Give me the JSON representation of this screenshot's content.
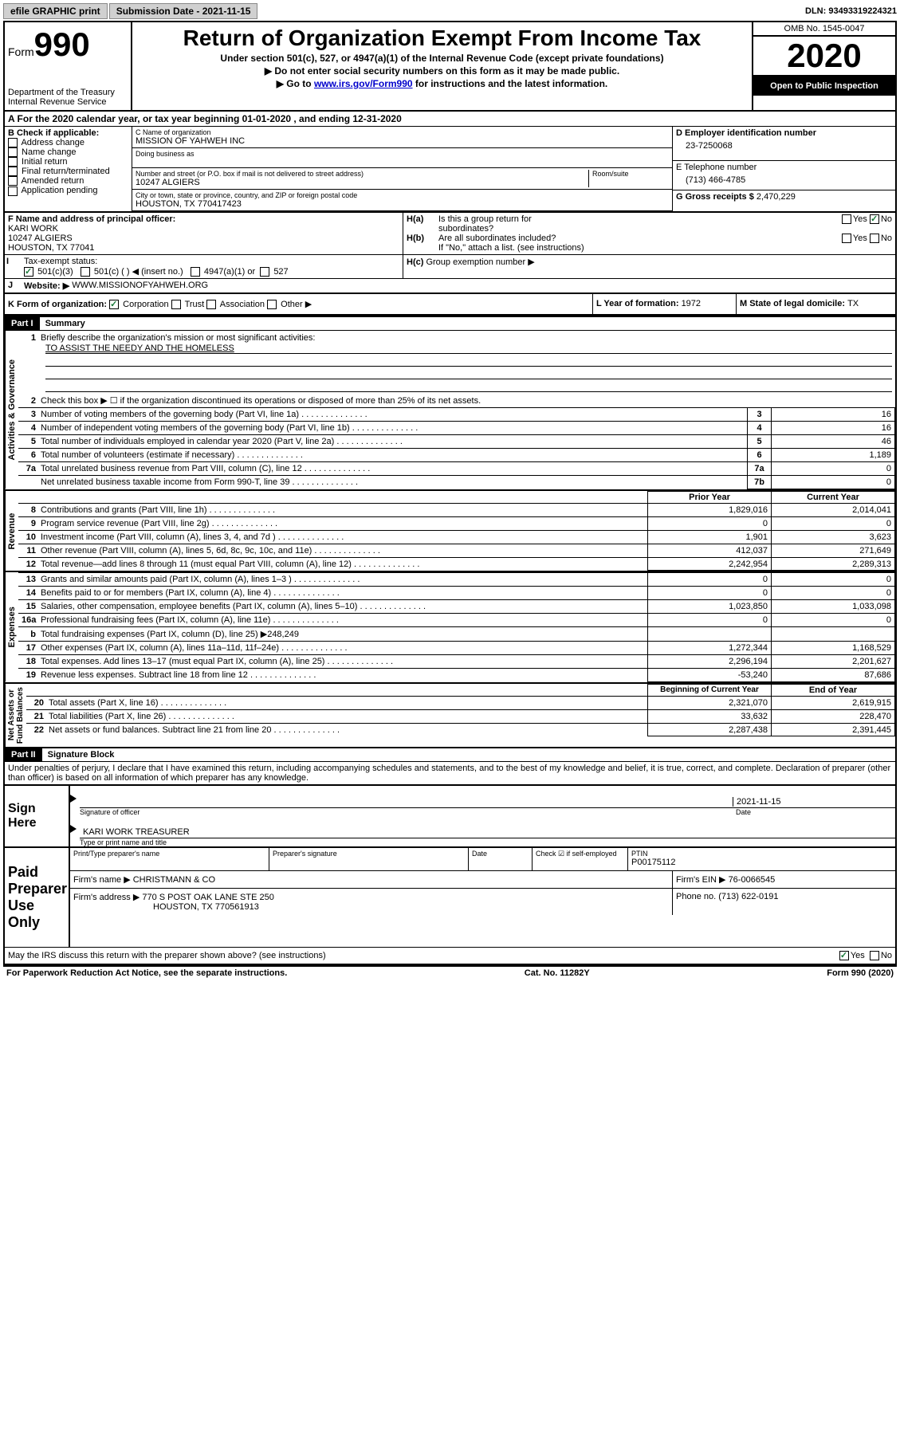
{
  "topbar": {
    "efile": "efile GRAPHIC print",
    "submission_label": "Submission Date - ",
    "submission_date": "2021-11-15",
    "dln_label": "DLN: ",
    "dln": "93493319224321"
  },
  "header": {
    "form_label": "Form",
    "form_num": "990",
    "dept": "Department of the Treasury\nInternal Revenue Service",
    "title": "Return of Organization Exempt From Income Tax",
    "subtitle": "Under section 501(c), 527, or 4947(a)(1) of the Internal Revenue Code (except private foundations)",
    "note1": "▶ Do not enter social security numbers on this form as it may be made public.",
    "note2_pre": "▶ Go to ",
    "note2_link": "www.irs.gov/Form990",
    "note2_post": " for instructions and the latest information.",
    "omb": "OMB No. 1545-0047",
    "year": "2020",
    "inspection": "Open to Public Inspection"
  },
  "section_a": "A For the 2020 calendar year, or tax year beginning 01-01-2020    , and ending 12-31-2020",
  "col_b": {
    "label": "B Check if applicable:",
    "items": [
      "Address change",
      "Name change",
      "Initial return",
      "Final return/terminated",
      "Amended return",
      "Application pending"
    ]
  },
  "col_c": {
    "name_label": "C Name of organization",
    "name": "MISSION OF YAHWEH INC",
    "dba_label": "Doing business as",
    "street_label": "Number and street (or P.O. box if mail is not delivered to street address)",
    "room_label": "Room/suite",
    "street": "10247 ALGIERS",
    "city_label": "City or town, state or province, country, and ZIP or foreign postal code",
    "city": "HOUSTON, TX  770417423"
  },
  "col_d": {
    "label": "D Employer identification number",
    "ein": "23-7250068"
  },
  "col_e": {
    "label": "E Telephone number",
    "phone": "(713) 466-4785"
  },
  "col_g": {
    "label": "G Gross receipts $ ",
    "amount": "2,470,229"
  },
  "col_f": {
    "label": "F  Name and address of principal officer:",
    "name": "KARI WORK",
    "street": "10247 ALGIERS",
    "city": "HOUSTON, TX  77041"
  },
  "col_h": {
    "a_label": "Is this a group return for",
    "a_label2": "subordinates?",
    "b_label": "Are all subordinates included?",
    "b_note": "If \"No,\" attach a list. (see instructions)",
    "c_label": "Group exemption number ▶"
  },
  "tax_exempt": {
    "label": "Tax-exempt status:",
    "opt1": "501(c)(3)",
    "opt2": "501(c) (   ) ◀ (insert no.)",
    "opt3": "4947(a)(1) or",
    "opt4": "527"
  },
  "website": {
    "label": "Website: ▶",
    "url": "WWW.MISSIONOFYAHWEH.ORG"
  },
  "col_k": {
    "label": "K Form of organization:",
    "opts": [
      "Corporation",
      "Trust",
      "Association",
      "Other ▶"
    ]
  },
  "col_l": {
    "label": "L Year of formation: ",
    "val": "1972"
  },
  "col_m": {
    "label": "M State of legal domicile: ",
    "val": "TX"
  },
  "part1": {
    "header": "Part I",
    "title": "Summary",
    "activities_label": "Activities & Governance",
    "revenue_label": "Revenue",
    "expenses_label": "Expenses",
    "netassets_label": "Net Assets or\nFund Balances",
    "line1_label": "Briefly describe the organization's mission or most significant activities:",
    "line1_text": "TO ASSIST THE NEEDY AND THE HOMELESS",
    "line2": "Check this box ▶ ☐  if the organization discontinued its operations or disposed of more than 25% of its net assets.",
    "lines_gov": [
      {
        "n": "3",
        "t": "Number of voting members of the governing body (Part VI, line 1a)",
        "b": "3",
        "v": "16"
      },
      {
        "n": "4",
        "t": "Number of independent voting members of the governing body (Part VI, line 1b)",
        "b": "4",
        "v": "16"
      },
      {
        "n": "5",
        "t": "Total number of individuals employed in calendar year 2020 (Part V, line 2a)",
        "b": "5",
        "v": "46"
      },
      {
        "n": "6",
        "t": "Total number of volunteers (estimate if necessary)",
        "b": "6",
        "v": "1,189"
      },
      {
        "n": "7a",
        "t": "Total unrelated business revenue from Part VIII, column (C), line 12",
        "b": "7a",
        "v": "0"
      },
      {
        "n": "",
        "t": "Net unrelated business taxable income from Form 990-T, line 39",
        "b": "7b",
        "v": "0"
      }
    ],
    "prior_year": "Prior Year",
    "current_year": "Current Year",
    "begin_year": "Beginning of Current Year",
    "end_year": "End of Year",
    "lines_rev": [
      {
        "n": "8",
        "t": "Contributions and grants (Part VIII, line 1h)",
        "p": "1,829,016",
        "c": "2,014,041"
      },
      {
        "n": "9",
        "t": "Program service revenue (Part VIII, line 2g)",
        "p": "0",
        "c": "0"
      },
      {
        "n": "10",
        "t": "Investment income (Part VIII, column (A), lines 3, 4, and 7d )",
        "p": "1,901",
        "c": "3,623"
      },
      {
        "n": "11",
        "t": "Other revenue (Part VIII, column (A), lines 5, 6d, 8c, 9c, 10c, and 11e)",
        "p": "412,037",
        "c": "271,649"
      },
      {
        "n": "12",
        "t": "Total revenue—add lines 8 through 11 (must equal Part VIII, column (A), line 12)",
        "p": "2,242,954",
        "c": "2,289,313"
      }
    ],
    "lines_exp": [
      {
        "n": "13",
        "t": "Grants and similar amounts paid (Part IX, column (A), lines 1–3 )",
        "p": "0",
        "c": "0"
      },
      {
        "n": "14",
        "t": "Benefits paid to or for members (Part IX, column (A), line 4)",
        "p": "0",
        "c": "0"
      },
      {
        "n": "15",
        "t": "Salaries, other compensation, employee benefits (Part IX, column (A), lines 5–10)",
        "p": "1,023,850",
        "c": "1,033,098"
      },
      {
        "n": "16a",
        "t": "Professional fundraising fees (Part IX, column (A), line 11e)",
        "p": "0",
        "c": "0"
      },
      {
        "n": "b",
        "t": "Total fundraising expenses (Part IX, column (D), line 25) ▶248,249",
        "p": "",
        "c": "",
        "grey": true
      },
      {
        "n": "17",
        "t": "Other expenses (Part IX, column (A), lines 11a–11d, 11f–24e)",
        "p": "1,272,344",
        "c": "1,168,529"
      },
      {
        "n": "18",
        "t": "Total expenses. Add lines 13–17 (must equal Part IX, column (A), line 25)",
        "p": "2,296,194",
        "c": "2,201,627"
      },
      {
        "n": "19",
        "t": "Revenue less expenses. Subtract line 18 from line 12",
        "p": "-53,240",
        "c": "87,686"
      }
    ],
    "lines_net": [
      {
        "n": "20",
        "t": "Total assets (Part X, line 16)",
        "p": "2,321,070",
        "c": "2,619,915"
      },
      {
        "n": "21",
        "t": "Total liabilities (Part X, line 26)",
        "p": "33,632",
        "c": "228,470"
      },
      {
        "n": "22",
        "t": "Net assets or fund balances. Subtract line 21 from line 20",
        "p": "2,287,438",
        "c": "2,391,445"
      }
    ]
  },
  "part2": {
    "header": "Part II",
    "title": "Signature Block",
    "declaration": "Under penalties of perjury, I declare that I have examined this return, including accompanying schedules and statements, and to the best of my knowledge and belief, it is true, correct, and complete. Declaration of preparer (other than officer) is based on all information of which preparer has any knowledge.",
    "sign_here": "Sign Here",
    "sig_officer": "Signature of officer",
    "sig_date": "2021-11-15",
    "sig_date_label": "Date",
    "officer_name": "KARI WORK  TREASURER",
    "officer_name_label": "Type or print name and title",
    "paid_prep": "Paid Preparer Use Only",
    "prep_name_label": "Print/Type preparer's name",
    "prep_sig_label": "Preparer's signature",
    "date_label": "Date",
    "check_label": "Check ☑ if self-employed",
    "ptin_label": "PTIN",
    "ptin": "P00175112",
    "firm_name_label": "Firm's name    ▶ ",
    "firm_name": "CHRISTMANN & CO",
    "firm_ein_label": "Firm's EIN ▶ ",
    "firm_ein": "76-0066545",
    "firm_addr_label": "Firm's address ▶ ",
    "firm_addr": "770 S POST OAK LANE STE 250",
    "firm_city": "HOUSTON, TX  770561913",
    "phone_label": "Phone no. ",
    "phone": "(713) 622-0191",
    "discuss": "May the IRS discuss this return with the preparer shown above? (see instructions)"
  },
  "footer": {
    "paperwork": "For Paperwork Reduction Act Notice, see the separate instructions.",
    "catno": "Cat. No. 11282Y",
    "form": "Form 990 (2020)"
  },
  "yes": "Yes",
  "no": "No",
  "ha": "H(a)",
  "hb": "H(b)",
  "hc": "H(c)",
  "line_b": "b",
  "line_i": "I",
  "line_j": "J"
}
